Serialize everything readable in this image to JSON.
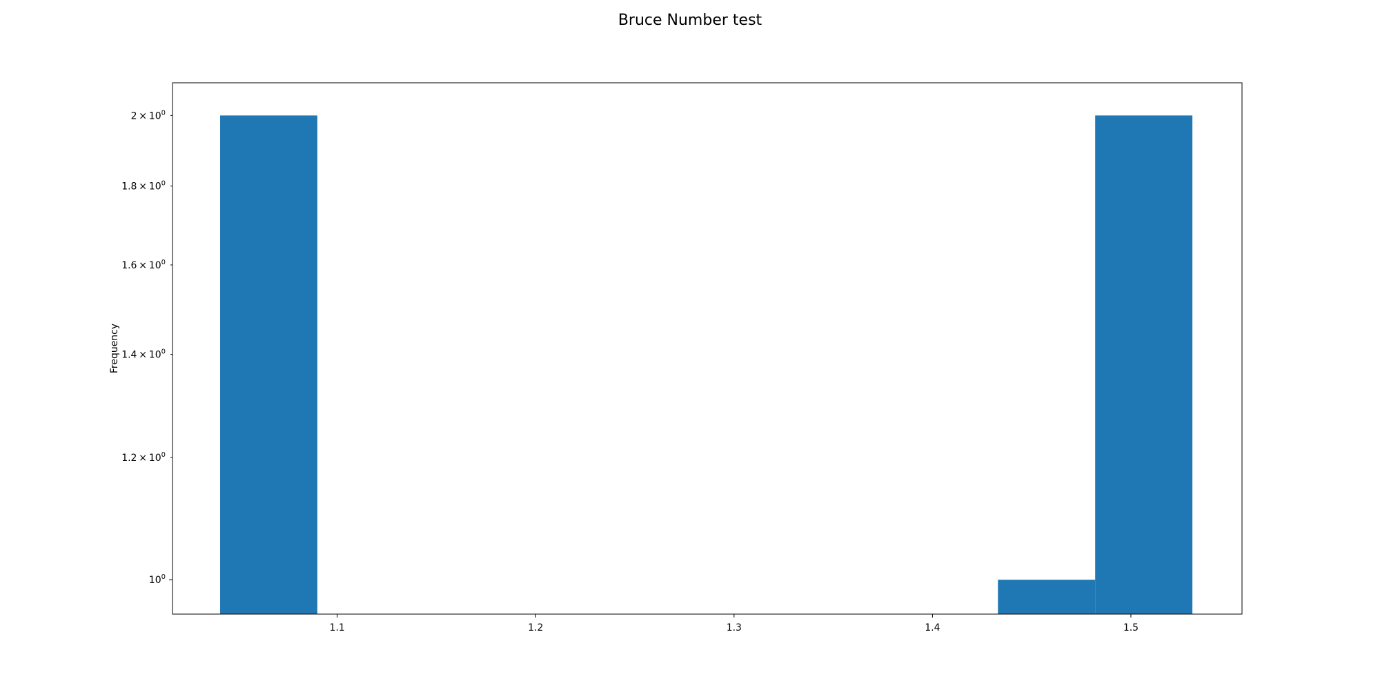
{
  "chart_data": {
    "type": "bar",
    "title": "Bruce Number test",
    "xlabel": "",
    "ylabel": "Frequency",
    "x_scale": "linear",
    "y_scale": "log",
    "xlim": [
      1.017,
      1.556
    ],
    "ylim": [
      0.95,
      2.1
    ],
    "x_ticks": [
      {
        "value": 1.1,
        "label": "1.1"
      },
      {
        "value": 1.2,
        "label": "1.2"
      },
      {
        "value": 1.3,
        "label": "1.3"
      },
      {
        "value": 1.4,
        "label": "1.4"
      },
      {
        "value": 1.5,
        "label": "1.5"
      }
    ],
    "y_ticks": [
      {
        "value": 1.0,
        "mantissa": "",
        "base": "10",
        "exponent": "0"
      },
      {
        "value": 1.2,
        "mantissa": "1.2",
        "base": "10",
        "exponent": "0"
      },
      {
        "value": 1.4,
        "mantissa": "1.4",
        "base": "10",
        "exponent": "0"
      },
      {
        "value": 1.6,
        "mantissa": "1.6",
        "base": "10",
        "exponent": "0"
      },
      {
        "value": 1.8,
        "mantissa": "1.8",
        "base": "10",
        "exponent": "0"
      },
      {
        "value": 2.0,
        "mantissa": "2",
        "base": "10",
        "exponent": "0"
      }
    ],
    "bins": [
      {
        "x0": 1.041,
        "x1": 1.09,
        "count": 2
      },
      {
        "x0": 1.09,
        "x1": 1.139,
        "count": 0
      },
      {
        "x0": 1.139,
        "x1": 1.188,
        "count": 0
      },
      {
        "x0": 1.188,
        "x1": 1.237,
        "count": 0
      },
      {
        "x0": 1.237,
        "x1": 1.286,
        "count": 0
      },
      {
        "x0": 1.286,
        "x1": 1.335,
        "count": 0
      },
      {
        "x0": 1.335,
        "x1": 1.384,
        "count": 0
      },
      {
        "x0": 1.384,
        "x1": 1.433,
        "count": 0
      },
      {
        "x0": 1.433,
        "x1": 1.482,
        "count": 1
      },
      {
        "x0": 1.482,
        "x1": 1.531,
        "count": 2
      }
    ],
    "bar_color": "#1f77b4",
    "grid": false,
    "legend": "none"
  }
}
